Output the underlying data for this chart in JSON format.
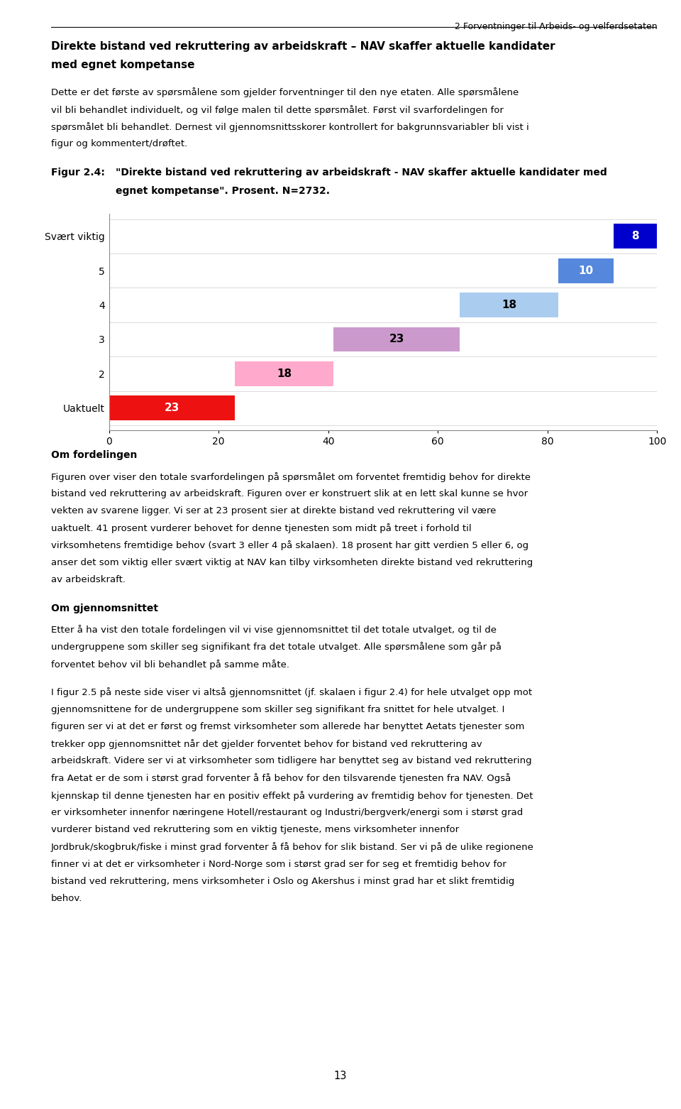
{
  "page_header": "2 Forventninger til Arbeids- og velferdsetaten",
  "section_title_line1": "Direkte bistand ved rekruttering av arbeidskraft – NAV skaffer aktuelle kandidater",
  "section_title_line2": "med egnet kompetanse",
  "para1_lines": [
    "Dette er det første av spørsmålene som gjelder forventninger til den nye etaten. Alle spørsmålene",
    "vil bli behandlet individuelt, og vil følge malen til dette spørsmålet. Først vil svarfordelingen for",
    "spørsmålet bli behandlet. Dernest vil gjennomsnittsskorer kontrollert for bakgrunnsvariabler bli vist i",
    "figur og kommentert/drøftet."
  ],
  "fig_label": "Figur 2.4:",
  "fig_caption_line1": "\"Direkte bistand ved rekruttering av arbeidskraft - NAV skaffer aktuelle kandidater med",
  "fig_caption_line2": "egnet kompetanse\". Prosent. N=2732.",
  "categories": [
    "Uaktuelt",
    "2",
    "3",
    "4",
    "5",
    "Svært viktig"
  ],
  "values": [
    23,
    18,
    23,
    18,
    10,
    8
  ],
  "bar_colors": [
    "#EE1111",
    "#FFAACC",
    "#CC99CC",
    "#AACCEE",
    "#5588DD",
    "#0000CC"
  ],
  "text_colors": [
    "#ffffff",
    "#000000",
    "#000000",
    "#000000",
    "#ffffff",
    "#ffffff"
  ],
  "xlim": [
    0,
    100
  ],
  "xticks": [
    0,
    20,
    40,
    60,
    80,
    100
  ],
  "body1_header": "Om fordelingen",
  "body1_lines": [
    "Figuren over viser den totale svarfordelingen på spørsmålet om forventet fremtidig behov for direkte",
    "bistand ved rekruttering av arbeidskraft. Figuren over er konstruert slik at en lett skal kunne se hvor",
    "vekten av svarene ligger. Vi ser at 23 prosent sier at direkte bistand ved rekruttering vil være",
    "uaktuelt. 41 prosent vurderer behovet for denne tjenesten som midt på treet i forhold til",
    "virksomhetens fremtidige behov (svart 3 eller 4 på skalaen). 18 prosent har gitt verdien 5 eller 6, og",
    "anser det som viktig eller svært viktig at NAV kan tilby virksomheten direkte bistand ved rekruttering",
    "av arbeidskraft."
  ],
  "body2_header": "Om gjennomsnittet",
  "body2_para1_lines": [
    "Etter å ha vist den totale fordelingen vil vi vise gjennomsnittet til det totale utvalget, og til de",
    "undergruppene som skiller seg signifikant fra det totale utvalget. Alle spørsmålene som går på",
    "forventet behov vil bli behandlet på samme måte."
  ],
  "body2_para2_lines": [
    "I figur 2.5 på neste side viser vi altså gjennomsnittet (jf. skalaen i figur 2.4) for hele utvalget opp mot",
    "gjennomsnittene for de undergruppene som skiller seg signifikant fra snittet for hele utvalget. I",
    "figuren ser vi at det er først og fremst virksomheter som allerede har benyttet Aetats tjenester som",
    "trekker opp gjennomsnittet når det gjelder forventet behov for bistand ved rekruttering av",
    "arbeidskraft. Videre ser vi at virksomheter som tidligere har benyttet seg av bistand ved rekruttering",
    "fra Aetat er de som i størst grad forventer å få behov for den tilsvarende tjenesten fra NAV. Også",
    "kjennskap til denne tjenesten har en positiv effekt på vurdering av fremtidig behov for tjenesten. Det",
    "er virksomheter innenfor næringene Hotell/restaurant og Industri/bergverk/energi som i størst grad",
    "vurderer bistand ved rekruttering som en viktig tjeneste, mens virksomheter innenfor",
    "Jordbruk/skogbruk/fiske i minst grad forventer å få behov for slik bistand. Ser vi på de ulike regionene",
    "finner vi at det er virksomheter i Nord-Norge som i størst grad ser for seg et fremtidig behov for",
    "bistand ved rekruttering, mens virksomheter i Oslo og Akershus i minst grad har et slikt fremtidig",
    "behov."
  ],
  "page_number": "13"
}
